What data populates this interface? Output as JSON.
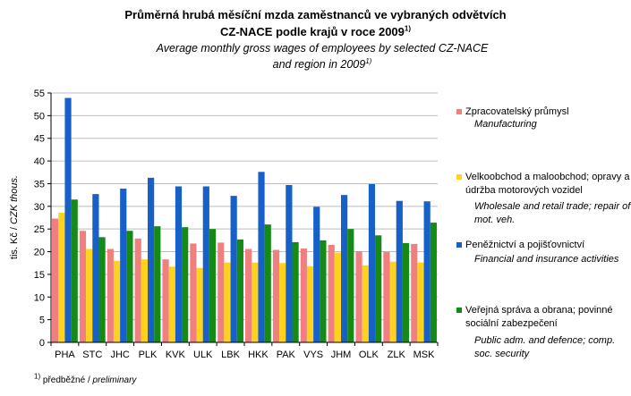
{
  "title": {
    "cz_line1": "Průměrná hrubá měsíční mzda zaměstnanců ve vybraných odvětvích",
    "cz_line2": "CZ-NACE podle krajů v roce 2009",
    "en_line1": "Average monthly gross wages of employees by selected CZ-NACE",
    "en_line2": "and region in 2009",
    "footnote_mark": "1)"
  },
  "footnote": {
    "mark": "1)",
    "cz": "předběžné",
    "separator": " / ",
    "en": "preliminary"
  },
  "chart_data": {
    "type": "bar",
    "ylabel": "tis. Kč / CZK thous.",
    "ylim": [
      0,
      55
    ],
    "yticks": [
      "0",
      "5",
      "10",
      "15",
      "20",
      "25",
      "30",
      "35",
      "40",
      "45",
      "50",
      "55"
    ],
    "categories": [
      "PHA",
      "STC",
      "JHC",
      "PLK",
      "KVK",
      "ULK",
      "LBK",
      "HKK",
      "PAK",
      "VYS",
      "JHM",
      "OLK",
      "ZLK",
      "MSK"
    ],
    "series": [
      {
        "name": "Zpracovatelský průmysl",
        "name_en": "Manufacturing",
        "color": "#f08080",
        "values": [
          27.3,
          24.6,
          20.6,
          22.9,
          18.3,
          21.8,
          22.0,
          20.6,
          20.4,
          20.7,
          21.5,
          20.1,
          20.0,
          21.7
        ]
      },
      {
        "name": "Velkoobchod a maloobchod; opravy a údržba motorových vozidel",
        "name_en": "Wholesale and retail trade; repair of mot. veh.",
        "color": "#ffd21e",
        "values": [
          28.6,
          20.6,
          18.0,
          18.3,
          16.7,
          16.4,
          17.6,
          17.6,
          17.5,
          16.8,
          19.8,
          17.0,
          17.8,
          17.6
        ]
      },
      {
        "name": "Peněžnictví a pojišťovnictví",
        "name_en": "Financial and insurance activities",
        "color": "#1660c8",
        "values": [
          53.9,
          32.7,
          33.9,
          36.3,
          34.4,
          34.4,
          32.3,
          37.6,
          34.7,
          29.9,
          32.5,
          34.9,
          31.2,
          31.1
        ]
      },
      {
        "name": "Veřejná správa a obrana; povinné sociální zabezpečení",
        "name_en": "Public adm. and defence; comp. soc. security",
        "color": "#168a16",
        "values": [
          31.5,
          23.2,
          24.6,
          25.6,
          25.4,
          25.0,
          22.7,
          26.0,
          22.1,
          22.5,
          25.0,
          23.6,
          21.9,
          26.4
        ]
      }
    ]
  }
}
